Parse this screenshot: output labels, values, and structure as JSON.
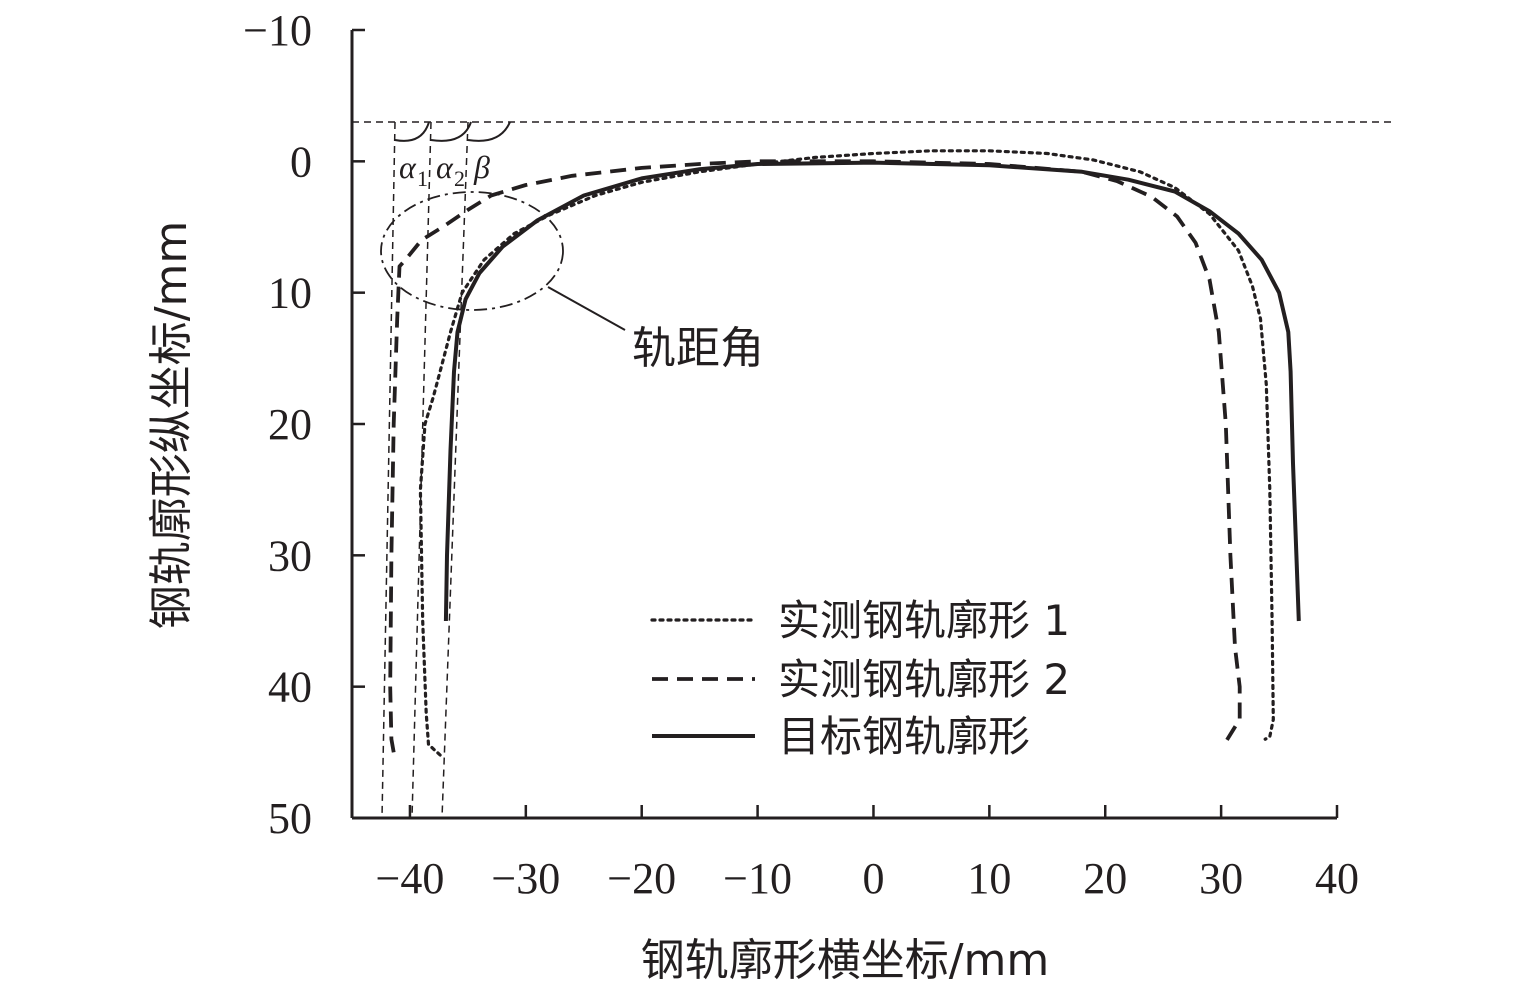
{
  "chart_data": {
    "type": "line",
    "xlabel": "钢轨廓形横坐标/mm",
    "ylabel": "钢轨廓形纵坐标/mm",
    "xlim": [
      -45,
      40
    ],
    "ylim": [
      -10,
      50
    ],
    "y_inverted": true,
    "xticks": [
      -40,
      -30,
      -20,
      -10,
      0,
      10,
      20,
      30,
      40
    ],
    "yticks": [
      -10,
      0,
      10,
      20,
      30,
      40,
      50
    ],
    "xtick_labels": [
      "−40",
      "−30",
      "−20",
      "−10",
      "0",
      "10",
      "20",
      "30",
      "40"
    ],
    "ytick_labels": [
      "−10",
      "0",
      "10",
      "20",
      "30",
      "40",
      "50"
    ],
    "grid": false,
    "legend_position": "bottom-right",
    "series": [
      {
        "name": "实测钢轨廓形 1",
        "style": "dotted",
        "points": [
          [
            -37.4,
            45.2
          ],
          [
            -38.4,
            44.4
          ],
          [
            -38.6,
            42
          ],
          [
            -38.9,
            35
          ],
          [
            -39.1,
            25
          ],
          [
            -38.7,
            20
          ],
          [
            -38.0,
            18
          ],
          [
            -37.4,
            16
          ],
          [
            -36.5,
            13
          ],
          [
            -35.5,
            10
          ],
          [
            -33.6,
            7.5
          ],
          [
            -31.0,
            5.5
          ],
          [
            -28.0,
            4.1
          ],
          [
            -24.0,
            2.6
          ],
          [
            -20.0,
            1.6
          ],
          [
            -15.0,
            0.8
          ],
          [
            -10.0,
            0.2
          ],
          [
            -5.0,
            -0.3
          ],
          [
            0.0,
            -0.6
          ],
          [
            5.0,
            -0.8
          ],
          [
            10.0,
            -0.8
          ],
          [
            15.0,
            -0.6
          ],
          [
            19.0,
            -0.1
          ],
          [
            23.0,
            0.8
          ],
          [
            26.0,
            2.0
          ],
          [
            29.0,
            4.0
          ],
          [
            31.5,
            6.8
          ],
          [
            32.7,
            9.5
          ],
          [
            33.4,
            12
          ],
          [
            33.9,
            17
          ],
          [
            34.2,
            25
          ],
          [
            34.4,
            35
          ],
          [
            34.5,
            42.5
          ],
          [
            34.2,
            43.8
          ],
          [
            33.8,
            44.0
          ]
        ]
      },
      {
        "name": "实测钢轨廓形 2",
        "style": "dashed",
        "points": [
          [
            -41.4,
            45.0
          ],
          [
            -41.6,
            44.0
          ],
          [
            -41.7,
            40
          ],
          [
            -41.6,
            30
          ],
          [
            -41.4,
            20
          ],
          [
            -41.1,
            12
          ],
          [
            -40.9,
            8.0
          ],
          [
            -40.3,
            7.4
          ],
          [
            -39.0,
            6.0
          ],
          [
            -37.0,
            4.9
          ],
          [
            -35.0,
            3.7
          ],
          [
            -33.0,
            2.6
          ],
          [
            -30.0,
            1.8
          ],
          [
            -26.0,
            1.1
          ],
          [
            -20.0,
            0.5
          ],
          [
            -15.0,
            0.2
          ],
          [
            -10.0,
            0.0
          ],
          [
            0.0,
            0.0
          ],
          [
            10.0,
            0.2
          ],
          [
            18.0,
            0.8
          ],
          [
            21.0,
            1.5
          ],
          [
            24.0,
            2.7
          ],
          [
            26.2,
            4.2
          ],
          [
            27.8,
            6.2
          ],
          [
            29.0,
            9
          ],
          [
            29.8,
            13
          ],
          [
            30.4,
            20
          ],
          [
            30.8,
            30
          ],
          [
            31.2,
            37
          ],
          [
            31.6,
            40
          ],
          [
            31.6,
            42.5
          ],
          [
            31.1,
            43.2
          ],
          [
            30.4,
            44.2
          ]
        ]
      },
      {
        "name": "目标钢轨廓形",
        "style": "solid",
        "points": [
          [
            -36.9,
            35.0
          ],
          [
            -36.8,
            30
          ],
          [
            -36.5,
            22
          ],
          [
            -36.2,
            16
          ],
          [
            -35.9,
            13
          ],
          [
            -35.2,
            10.5
          ],
          [
            -34.0,
            8.5
          ],
          [
            -32.0,
            6.5
          ],
          [
            -29.0,
            4.5
          ],
          [
            -25.0,
            2.6
          ],
          [
            -20.0,
            1.3
          ],
          [
            -15.0,
            0.6
          ],
          [
            -10.0,
            0.2
          ],
          [
            0.0,
            0.1
          ],
          [
            10.0,
            0.3
          ],
          [
            18.0,
            0.8
          ],
          [
            22.0,
            1.4
          ],
          [
            26.0,
            2.3
          ],
          [
            29.0,
            3.8
          ],
          [
            31.5,
            5.5
          ],
          [
            33.5,
            7.5
          ],
          [
            35.0,
            10
          ],
          [
            35.8,
            13
          ],
          [
            36.0,
            16
          ],
          [
            36.2,
            23
          ],
          [
            36.5,
            30
          ],
          [
            36.7,
            35.0
          ]
        ]
      }
    ],
    "annotation": "轨距角",
    "angle_labels": [
      "α",
      "1",
      "α",
      "2",
      "β"
    ]
  }
}
